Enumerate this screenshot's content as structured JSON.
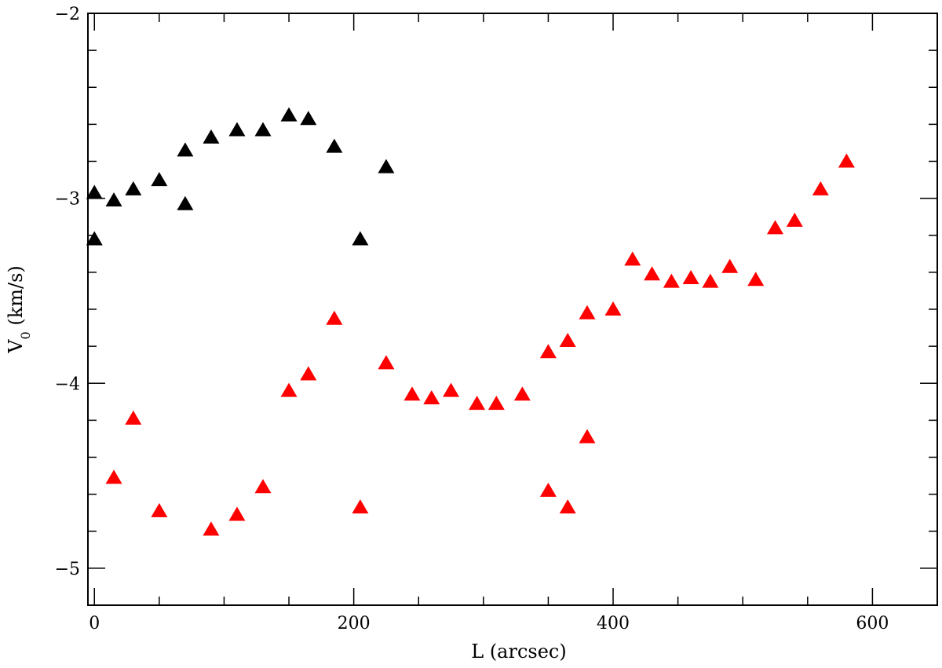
{
  "chart_data": {
    "type": "scatter",
    "title": "",
    "xlabel": "L (arcsec)",
    "ylabel_main": "V",
    "ylabel_sub": "0",
    "ylabel_rest": " (km/s)",
    "xlim": [
      -5,
      650
    ],
    "ylim": [
      -5.2,
      -2
    ],
    "x_ticks": [
      0,
      200,
      400,
      600
    ],
    "y_ticks": [
      -5,
      -4,
      -3,
      -2
    ],
    "x_minor_step": 50,
    "y_minor_step": 0.2,
    "grid": false,
    "marker": "triangle",
    "series": [
      {
        "color": "#000000",
        "points": [
          [
            0,
            -2.97
          ],
          [
            0,
            -3.22
          ],
          [
            15,
            -3.01
          ],
          [
            30,
            -2.95
          ],
          [
            50,
            -2.9
          ],
          [
            70,
            -2.74
          ],
          [
            70,
            -3.03
          ],
          [
            90,
            -2.67
          ],
          [
            110,
            -2.63
          ],
          [
            130,
            -2.63
          ],
          [
            150,
            -2.55
          ],
          [
            165,
            -2.57
          ],
          [
            185,
            -2.72
          ],
          [
            205,
            -3.22
          ],
          [
            225,
            -2.83
          ]
        ]
      },
      {
        "color": "#ff0000",
        "points": [
          [
            15,
            -4.51
          ],
          [
            30,
            -4.19
          ],
          [
            50,
            -4.69
          ],
          [
            90,
            -4.79
          ],
          [
            110,
            -4.71
          ],
          [
            130,
            -4.56
          ],
          [
            150,
            -4.04
          ],
          [
            165,
            -3.95
          ],
          [
            185,
            -3.65
          ],
          [
            205,
            -4.67
          ],
          [
            225,
            -3.89
          ],
          [
            245,
            -4.06
          ],
          [
            260,
            -4.08
          ],
          [
            275,
            -4.04
          ],
          [
            295,
            -4.11
          ],
          [
            310,
            -4.11
          ],
          [
            330,
            -4.06
          ],
          [
            350,
            -3.83
          ],
          [
            350,
            -4.58
          ],
          [
            365,
            -3.77
          ],
          [
            365,
            -4.67
          ],
          [
            380,
            -3.62
          ],
          [
            380,
            -4.29
          ],
          [
            400,
            -3.6
          ],
          [
            415,
            -3.33
          ],
          [
            430,
            -3.41
          ],
          [
            445,
            -3.45
          ],
          [
            460,
            -3.43
          ],
          [
            475,
            -3.45
          ],
          [
            490,
            -3.37
          ],
          [
            510,
            -3.44
          ],
          [
            525,
            -3.16
          ],
          [
            540,
            -3.12
          ],
          [
            560,
            -2.95
          ],
          [
            580,
            -2.8
          ]
        ]
      }
    ]
  }
}
